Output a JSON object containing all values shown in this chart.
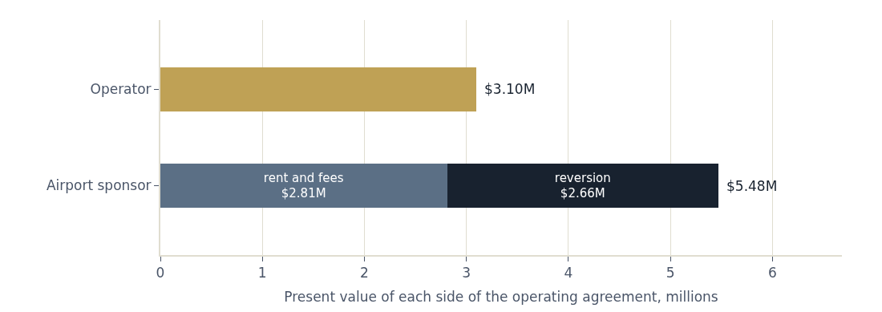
{
  "chart_data": {
    "type": "bar",
    "orientation": "horizontal",
    "stacked": true,
    "xlabel": "Present value of each side of the operating agreement, millions",
    "categories": [
      "Operator",
      "Airport sponsor"
    ],
    "series": [
      {
        "color": "#bfa155",
        "values": [
          3.1,
          null
        ]
      },
      {
        "name": "rent and fees",
        "color": "#5b6f85",
        "values": [
          null,
          2.81
        ],
        "value_labels": [
          null,
          "$2.81M"
        ]
      },
      {
        "name": "reversion",
        "color": "#18222f",
        "values": [
          null,
          2.66
        ],
        "value_labels": [
          null,
          "$2.66M"
        ]
      }
    ],
    "totals": [
      "$3.10M",
      "$5.48M"
    ],
    "xlim": [
      0,
      6.68
    ],
    "xticks": [
      0,
      1,
      2,
      3,
      4,
      5,
      6
    ],
    "grid": "x"
  }
}
